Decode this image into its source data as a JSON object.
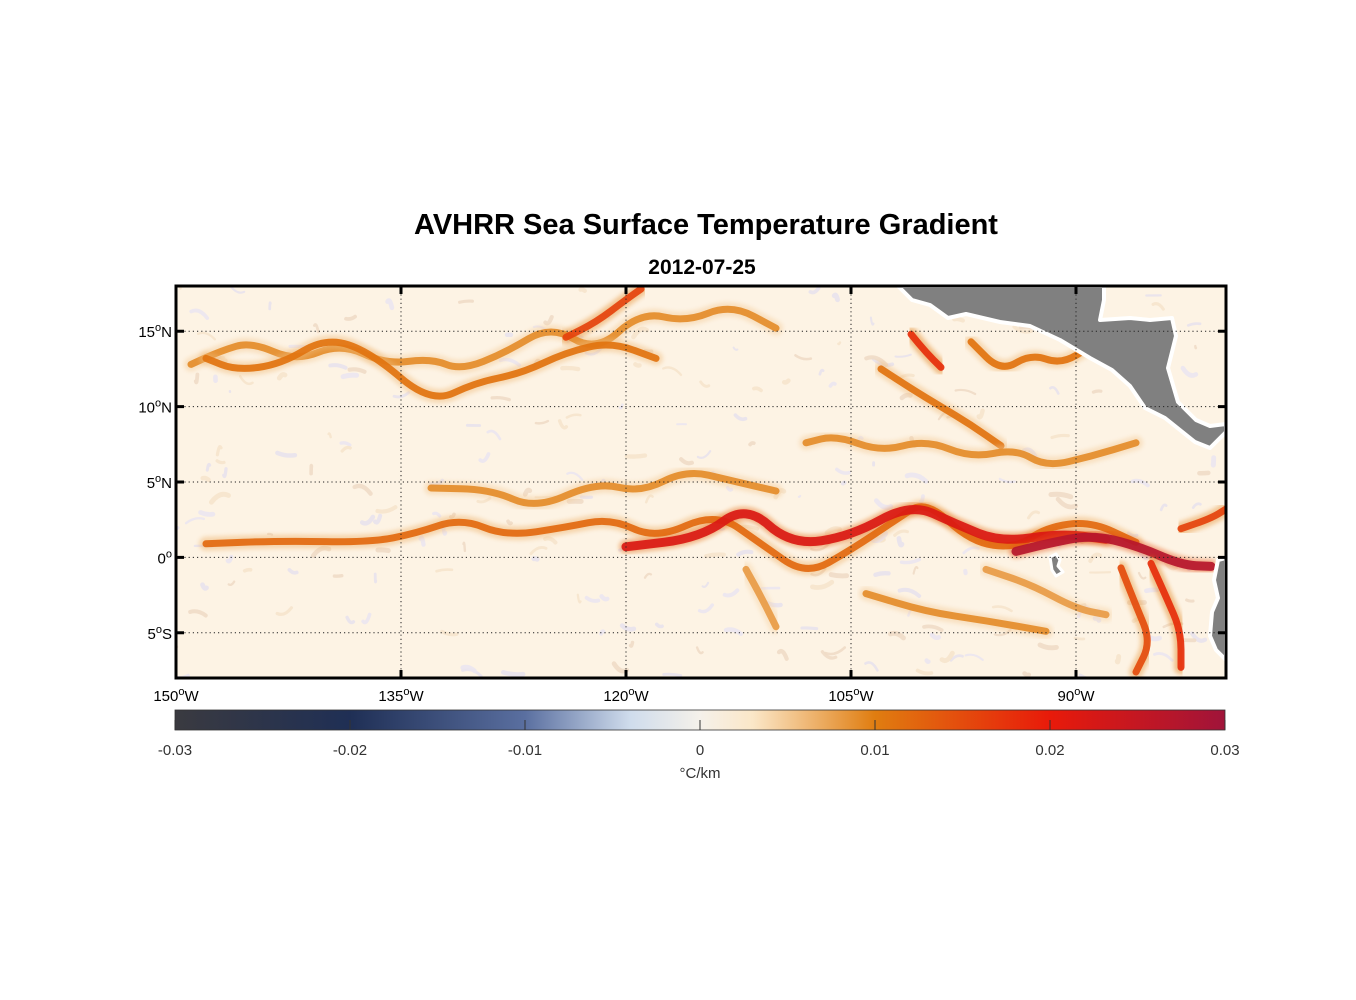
{
  "title": "AVHRR Sea Surface Temperature Gradient",
  "subtitle": "2012-07-25",
  "map": {
    "lon_range": [
      -150,
      -80
    ],
    "lat_range": [
      -8,
      18
    ],
    "lat_ticks": [
      {
        "value": 15,
        "num": "15",
        "hemi": "N"
      },
      {
        "value": 10,
        "num": "10",
        "hemi": "N"
      },
      {
        "value": 5,
        "num": "5",
        "hemi": "N"
      },
      {
        "value": 0,
        "num": "0",
        "hemi": ""
      },
      {
        "value": -5,
        "num": "5",
        "hemi": "S"
      }
    ],
    "lon_ticks": [
      {
        "value": -150,
        "num": "150",
        "hemi": "W"
      },
      {
        "value": -135,
        "num": "135",
        "hemi": "W"
      },
      {
        "value": -120,
        "num": "120",
        "hemi": "W"
      },
      {
        "value": -105,
        "num": "105",
        "hemi": "W"
      },
      {
        "value": -90,
        "num": "90",
        "hemi": "W"
      }
    ],
    "degree_symbol": "o",
    "gridlines": "dotted",
    "land_color": "#808080",
    "ocean_background": "#fdf3e4"
  },
  "colorbar": {
    "range": [
      -0.03,
      0.03
    ],
    "ticks": [
      "-0.03",
      "-0.02",
      "-0.01",
      "0",
      "0.01",
      "0.02",
      "0.03"
    ],
    "tick_values": [
      -0.03,
      -0.02,
      -0.01,
      0,
      0.01,
      0.02,
      0.03
    ],
    "label": "°C/km",
    "colormap": [
      {
        "v": -0.03,
        "c": "#3a3a40"
      },
      {
        "v": -0.02,
        "c": "#1f2f55"
      },
      {
        "v": -0.01,
        "c": "#5a6fa0"
      },
      {
        "v": -0.004,
        "c": "#cfdcec"
      },
      {
        "v": 0,
        "c": "#f5f1ea"
      },
      {
        "v": 0.003,
        "c": "#fbe7c8"
      },
      {
        "v": 0.01,
        "c": "#e07d10"
      },
      {
        "v": 0.02,
        "c": "#e81a0a"
      },
      {
        "v": 0.03,
        "c": "#a0143a"
      }
    ]
  },
  "chart_data": {
    "type": "heatmap",
    "title": "AVHRR Sea Surface Temperature Gradient",
    "subtitle": "2012-07-25",
    "xlabel": "",
    "ylabel": "",
    "xlim": [
      -150,
      -80
    ],
    "ylim": [
      -8,
      18
    ],
    "colorbar_label": "°C/km",
    "color_range": [
      -0.03,
      0.03
    ],
    "fronts": [
      {
        "name": "",
        "value": 0.012,
        "points": [
          [
            -148,
            0.9
          ],
          [
            -143,
            1.1
          ],
          [
            -137,
            1.0
          ],
          [
            -134,
            1.6
          ],
          [
            -131,
            2.6
          ],
          [
            -128,
            1.4
          ],
          [
            -124,
            2.0
          ],
          [
            -121,
            2.6
          ],
          [
            -118,
            1.2
          ],
          [
            -114,
            3.0
          ],
          [
            -111,
            0.9
          ],
          [
            -108,
            -1.2
          ],
          [
            -105,
            0.5
          ],
          [
            -102,
            2.5
          ],
          [
            -100,
            3.8
          ],
          [
            -97,
            1.0
          ],
          [
            -94,
            0.6
          ],
          [
            -92,
            2.0
          ],
          [
            -89,
            2.4
          ],
          [
            -86,
            1.0
          ]
        ]
      },
      {
        "name": "",
        "value": 0.022,
        "points": [
          [
            -120,
            0.7
          ],
          [
            -115,
            1.3
          ],
          [
            -112,
            3.5
          ],
          [
            -109,
            0.8
          ],
          [
            -105,
            1.4
          ],
          [
            -101,
            3.6
          ],
          [
            -98,
            2.2
          ],
          [
            -95,
            1.0
          ],
          [
            -91,
            1.6
          ],
          [
            -88,
            1.2
          ]
        ]
      },
      {
        "name": "",
        "value": 0.027,
        "points": [
          [
            -94,
            0.4
          ],
          [
            -92,
            0.9
          ],
          [
            -89,
            1.5
          ],
          [
            -86,
            0.8
          ],
          [
            -83,
            -0.5
          ],
          [
            -81,
            -0.6
          ]
        ]
      },
      {
        "name": "",
        "value": 0.009,
        "points": [
          [
            -133,
            4.6
          ],
          [
            -129,
            4.5
          ],
          [
            -126,
            3.2
          ],
          [
            -122,
            5.0
          ],
          [
            -119,
            4.3
          ],
          [
            -116,
            5.8
          ],
          [
            -113,
            5.1
          ],
          [
            -110,
            4.4
          ]
        ]
      },
      {
        "name": "",
        "value": 0.009,
        "points": [
          [
            -149,
            12.8
          ],
          [
            -147,
            13.7
          ],
          [
            -145,
            14.3
          ],
          [
            -142,
            13.0
          ],
          [
            -139,
            14.2
          ],
          [
            -136,
            12.8
          ],
          [
            -133,
            13.2
          ],
          [
            -131,
            12.4
          ],
          [
            -128,
            13.6
          ],
          [
            -125,
            15.4
          ],
          [
            -122,
            13.6
          ],
          [
            -119,
            16.3
          ],
          [
            -116,
            15.6
          ],
          [
            -113,
            16.8
          ],
          [
            -110,
            15.2
          ]
        ]
      },
      {
        "name": "",
        "value": 0.011,
        "points": [
          [
            -148,
            13.2
          ],
          [
            -146,
            12.4
          ],
          [
            -143,
            12.8
          ],
          [
            -140,
            14.6
          ],
          [
            -137,
            13.6
          ],
          [
            -133,
            10.2
          ],
          [
            -130,
            11.6
          ],
          [
            -127,
            12.2
          ],
          [
            -124,
            13.6
          ],
          [
            -121,
            14.3
          ],
          [
            -118,
            13.2
          ]
        ]
      },
      {
        "name": "",
        "value": 0.016,
        "points": [
          [
            -124,
            14.6
          ],
          [
            -122,
            15.6
          ],
          [
            -120,
            17.1
          ],
          [
            -119,
            17.8
          ]
        ]
      },
      {
        "name": "",
        "value": 0.018,
        "points": [
          [
            -101,
            14.8
          ],
          [
            -100,
            13.6
          ],
          [
            -99,
            12.6
          ]
        ]
      },
      {
        "name": "",
        "value": 0.011,
        "points": [
          [
            -103,
            12.5
          ],
          [
            -101,
            11.2
          ],
          [
            -99,
            10.0
          ],
          [
            -97,
            8.8
          ],
          [
            -95,
            7.4
          ]
        ]
      },
      {
        "name": "",
        "value": 0.011,
        "points": [
          [
            -97,
            14.3
          ],
          [
            -95,
            12.3
          ],
          [
            -93,
            13.5
          ],
          [
            -91,
            12.8
          ],
          [
            -89,
            14.0
          ]
        ]
      },
      {
        "name": "",
        "value": 0.009,
        "points": [
          [
            -108,
            7.6
          ],
          [
            -106,
            8.1
          ],
          [
            -103,
            7.0
          ],
          [
            -100,
            7.8
          ],
          [
            -97,
            6.6
          ],
          [
            -94,
            7.2
          ],
          [
            -92,
            6.0
          ],
          [
            -89,
            6.7
          ],
          [
            -86,
            7.6
          ]
        ]
      },
      {
        "name": "",
        "value": 0.018,
        "points": [
          [
            -85,
            -0.4
          ],
          [
            -84,
            -2.6
          ],
          [
            -83,
            -4.9
          ],
          [
            -83,
            -7.3
          ]
        ]
      },
      {
        "name": "",
        "value": 0.015,
        "points": [
          [
            -87,
            -0.7
          ],
          [
            -86,
            -3.2
          ],
          [
            -85,
            -5.6
          ],
          [
            -86,
            -7.6
          ]
        ]
      },
      {
        "name": "",
        "value": 0.016,
        "points": [
          [
            -83,
            1.9
          ],
          [
            -81,
            2.6
          ],
          [
            -80,
            3.2
          ]
        ]
      },
      {
        "name": "",
        "value": 0.008,
        "points": [
          [
            -112,
            -0.8
          ],
          [
            -111,
            -2.6
          ],
          [
            -110,
            -4.6
          ]
        ]
      },
      {
        "name": "",
        "value": 0.009,
        "points": [
          [
            -104,
            -2.4
          ],
          [
            -100,
            -3.6
          ],
          [
            -96,
            -4.2
          ],
          [
            -92,
            -4.9
          ]
        ]
      },
      {
        "name": "",
        "value": 0.008,
        "points": [
          [
            -96,
            -0.8
          ],
          [
            -93,
            -1.8
          ],
          [
            -90,
            -3.4
          ],
          [
            -88,
            -3.8
          ]
        ]
      }
    ]
  }
}
